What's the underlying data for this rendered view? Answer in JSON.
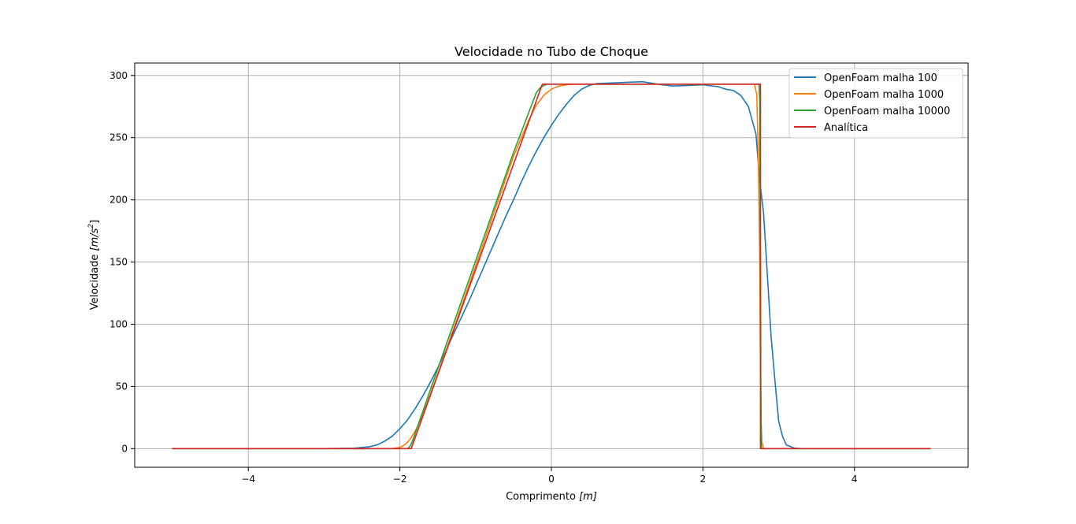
{
  "chart_data": {
    "type": "line",
    "title": "Velocidade no Tubo de Choque",
    "xlabel_main": "Comprimento ",
    "xlabel_unit": "[m]",
    "ylabel_main": "Velocidade ",
    "ylabel_unit": "[m/s",
    "ylabel_exp": "2",
    "ylabel_close": "]",
    "xlim": [
      -5.5,
      5.5
    ],
    "ylim": [
      -15,
      310
    ],
    "xticks": [
      -4,
      -2,
      0,
      2,
      4
    ],
    "xtick_labels": [
      "−4",
      "−2",
      "0",
      "2",
      "4"
    ],
    "yticks": [
      0,
      50,
      100,
      150,
      200,
      250,
      300
    ],
    "ytick_labels": [
      "0",
      "50",
      "100",
      "150",
      "200",
      "250",
      "300"
    ],
    "grid": true,
    "legend_position": "top-right",
    "series": [
      {
        "name": "OpenFoam malha 100",
        "color": "#1f77b4",
        "x": [
          -5,
          -4,
          -3,
          -2.6,
          -2.4,
          -2.3,
          -2.2,
          -2.1,
          -2.0,
          -1.9,
          -1.8,
          -1.7,
          -1.6,
          -1.5,
          -1.4,
          -1.3,
          -1.2,
          -1.1,
          -1.0,
          -0.9,
          -0.8,
          -0.7,
          -0.6,
          -0.5,
          -0.4,
          -0.3,
          -0.2,
          -0.1,
          0.0,
          0.1,
          0.2,
          0.3,
          0.4,
          0.5,
          0.6,
          0.8,
          1.0,
          1.2,
          1.4,
          1.6,
          1.8,
          2.0,
          2.2,
          2.3,
          2.4,
          2.5,
          2.6,
          2.7,
          2.75,
          2.8,
          2.85,
          2.9,
          2.95,
          3.0,
          3.05,
          3.1,
          3.2,
          3.3,
          4,
          5
        ],
        "y": [
          0,
          0,
          0,
          0.3,
          1.5,
          3,
          6,
          10,
          16,
          23,
          32,
          42,
          53,
          65,
          78,
          91,
          104,
          117,
          131,
          145,
          159,
          173,
          187,
          200,
          214,
          227,
          239,
          250,
          260,
          269,
          277,
          284,
          289,
          292,
          293.5,
          294,
          294.5,
          295,
          293,
          291.5,
          292,
          292.5,
          291,
          289,
          288,
          284,
          275,
          253,
          215,
          190,
          140,
          90,
          55,
          22,
          10,
          3,
          0.5,
          0,
          0,
          0
        ]
      },
      {
        "name": "OpenFoam malha 1000",
        "color": "#ff7f0e",
        "x": [
          -5,
          -2.1,
          -2.0,
          -1.95,
          -1.9,
          -1.85,
          -1.8,
          -1.75,
          -1.7,
          -1.6,
          -1.5,
          -1.0,
          -0.5,
          -0.3,
          -0.2,
          -0.1,
          0.0,
          0.1,
          0.2,
          0.3,
          2.68,
          2.71,
          2.73,
          2.75,
          2.76,
          2.77,
          2.78,
          2.8,
          5
        ],
        "y": [
          0,
          0,
          1,
          2.5,
          5,
          9,
          14,
          20,
          27,
          43,
          60,
          147,
          235,
          264,
          276,
          284,
          289,
          291.5,
          292.5,
          293,
          293,
          285,
          240,
          150,
          60,
          20,
          5,
          0,
          0
        ]
      },
      {
        "name": "OpenFoam malha 10000",
        "color": "#2ca02c",
        "x": [
          -5,
          -1.9,
          -1.88,
          -1.86,
          -1.84,
          -1.82,
          -1.8,
          -1.0,
          -0.5,
          -0.2,
          -0.15,
          -0.1,
          -0.05,
          2.74,
          2.75,
          2.76,
          2.765,
          2.77,
          5
        ],
        "y": [
          0,
          0,
          1,
          2.5,
          5,
          8.5,
          12,
          151,
          238,
          286,
          290,
          292,
          293,
          293,
          280,
          140,
          40,
          0,
          0
        ]
      },
      {
        "name": "Analítica",
        "color": "#d62728",
        "x": [
          -5,
          -1.85,
          -0.12,
          2.76,
          2.76,
          5
        ],
        "y": [
          0,
          0,
          293,
          293,
          0,
          0
        ]
      }
    ]
  }
}
